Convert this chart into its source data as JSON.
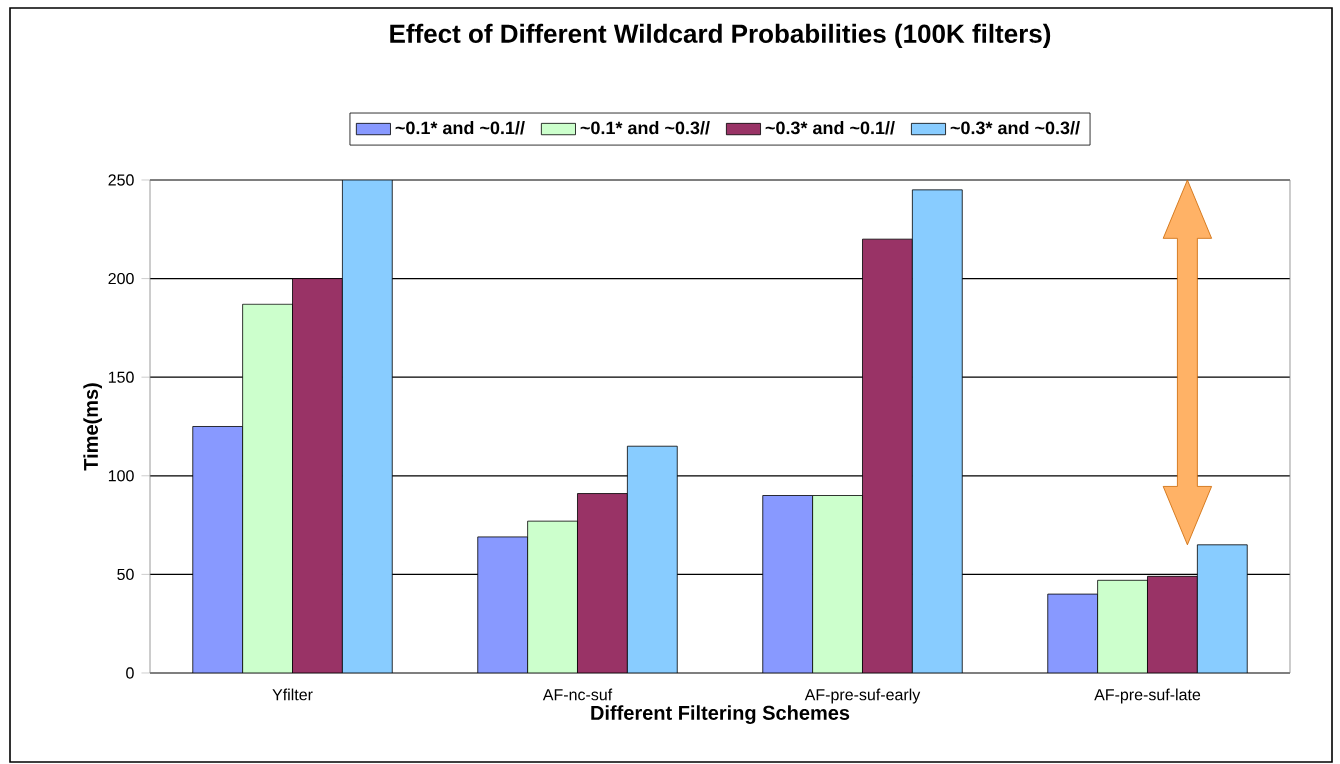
{
  "chart_data": {
    "type": "bar",
    "title": "Effect of Different Wildcard Probabilities (100K filters)",
    "xlabel": "Different Filtering Schemes",
    "ylabel": "Time(ms)",
    "categories": [
      "Yfilter",
      "AF-nc-suf",
      "AF-pre-suf-early",
      "AF-pre-suf-late"
    ],
    "series": [
      {
        "name": "~0.1* and ~0.1//",
        "color": "#8899ff",
        "values": [
          125,
          69,
          90,
          40
        ]
      },
      {
        "name": "~0.1* and ~0.3//",
        "color": "#ccffcc",
        "values": [
          187,
          77,
          90,
          47
        ]
      },
      {
        "name": "~0.3* and ~0.1//",
        "color": "#993366",
        "values": [
          200,
          91,
          220,
          49
        ]
      },
      {
        "name": "~0.3* and ~0.3//",
        "color": "#88ccff",
        "values": [
          250,
          115,
          245,
          65
        ]
      }
    ],
    "ylim": [
      0,
      250
    ],
    "yticks": [
      0,
      50,
      100,
      150,
      200,
      250
    ],
    "grid": "y",
    "legend": "top"
  }
}
